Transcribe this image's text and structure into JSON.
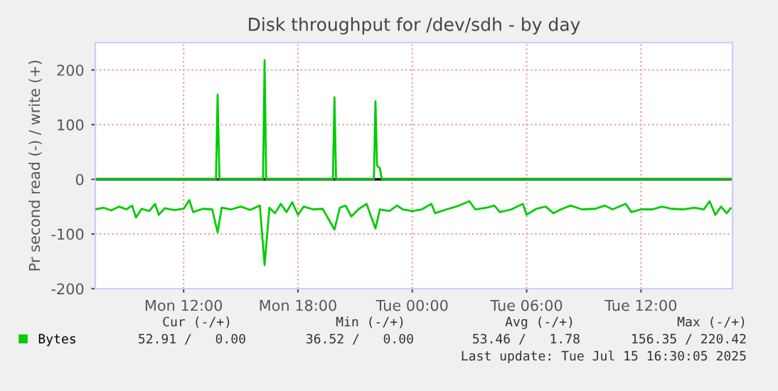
{
  "chart_data": {
    "type": "line",
    "title": "Disk throughput for /dev/sdh - by day",
    "ylabel": "Pr second read (-) / write (+)",
    "xlim": [
      "2025-07-14T07:22",
      "2025-07-15T16:48"
    ],
    "xticks": [
      {
        "value": "2025-07-14T12:00",
        "label": "Mon 12:00"
      },
      {
        "value": "2025-07-14T18:00",
        "label": "Mon 18:00"
      },
      {
        "value": "2025-07-15T00:00",
        "label": "Tue 00:00"
      },
      {
        "value": "2025-07-15T06:00",
        "label": "Tue 06:00"
      },
      {
        "value": "2025-07-15T12:00",
        "label": "Tue 12:00"
      }
    ],
    "ylim": [
      -200,
      250
    ],
    "yticks": [
      -200,
      -100,
      0,
      100,
      200
    ],
    "grid": true,
    "legend": "bottom",
    "ref_lines": [
      {
        "axis": "y",
        "value": 0,
        "color": "#000000"
      }
    ],
    "series": [
      {
        "name": "Bytes",
        "color": "#00cc00",
        "x": [
          "2025-07-14T07:22",
          "2025-07-14T07:48",
          "2025-07-14T08:12",
          "2025-07-14T08:36",
          "2025-07-14T09:00",
          "2025-07-14T09:18",
          "2025-07-14T09:30",
          "2025-07-14T09:48",
          "2025-07-14T10:12",
          "2025-07-14T10:30",
          "2025-07-14T10:42",
          "2025-07-14T11:00",
          "2025-07-14T11:30",
          "2025-07-14T12:00",
          "2025-07-14T12:18",
          "2025-07-14T12:30",
          "2025-07-14T13:00",
          "2025-07-14T13:30",
          "2025-07-14T13:47",
          "2025-07-14T14:00",
          "2025-07-14T14:30",
          "2025-07-14T15:00",
          "2025-07-14T15:30",
          "2025-07-14T16:00",
          "2025-07-14T16:15",
          "2025-07-14T16:30",
          "2025-07-14T16:48",
          "2025-07-14T17:06",
          "2025-07-14T17:24",
          "2025-07-14T17:42",
          "2025-07-14T18:00",
          "2025-07-14T18:18",
          "2025-07-14T18:48",
          "2025-07-14T19:18",
          "2025-07-14T19:55",
          "2025-07-14T20:12",
          "2025-07-14T20:30",
          "2025-07-14T20:48",
          "2025-07-14T21:12",
          "2025-07-14T21:36",
          "2025-07-14T22:04",
          "2025-07-14T22:18",
          "2025-07-14T22:48",
          "2025-07-14T23:12",
          "2025-07-14T23:30",
          "2025-07-15T00:00",
          "2025-07-15T00:30",
          "2025-07-15T01:00",
          "2025-07-15T01:12",
          "2025-07-15T01:48",
          "2025-07-15T02:18",
          "2025-07-15T03:00",
          "2025-07-15T03:18",
          "2025-07-15T03:54",
          "2025-07-15T04:18",
          "2025-07-15T04:36",
          "2025-07-15T05:12",
          "2025-07-15T05:48",
          "2025-07-15T06:00",
          "2025-07-15T06:30",
          "2025-07-15T07:00",
          "2025-07-15T07:24",
          "2025-07-15T07:48",
          "2025-07-15T08:18",
          "2025-07-15T08:54",
          "2025-07-15T09:36",
          "2025-07-15T10:06",
          "2025-07-15T10:30",
          "2025-07-15T11:12",
          "2025-07-15T11:30",
          "2025-07-15T12:00",
          "2025-07-15T12:36",
          "2025-07-15T13:06",
          "2025-07-15T13:36",
          "2025-07-15T14:12",
          "2025-07-15T14:48",
          "2025-07-15T15:18",
          "2025-07-15T15:36",
          "2025-07-15T15:54",
          "2025-07-15T16:12",
          "2025-07-15T16:30",
          "2025-07-15T16:42"
        ],
        "values": [
          -55,
          -52,
          -57,
          -50,
          -55,
          -48,
          -70,
          -54,
          -58,
          -45,
          -65,
          -53,
          -56,
          -54,
          -38,
          -60,
          -54,
          -55,
          -97,
          -52,
          -55,
          -50,
          -56,
          -48,
          -157,
          -52,
          -62,
          -45,
          -60,
          -42,
          -65,
          -50,
          -55,
          -54,
          -92,
          -52,
          -48,
          -68,
          -54,
          -45,
          -90,
          -55,
          -58,
          -48,
          -55,
          -58,
          -55,
          -45,
          -62,
          -55,
          -50,
          -40,
          -55,
          -52,
          -48,
          -60,
          -55,
          -45,
          -65,
          -54,
          -50,
          -62,
          -55,
          -48,
          -55,
          -54,
          -48,
          -55,
          -45,
          -60,
          -55,
          -55,
          -50,
          -54,
          -55,
          -52,
          -55,
          -40,
          -65,
          -50,
          -62,
          -53
        ]
      },
      {
        "color": "#00cc00",
        "x": [
          "2025-07-14T07:22",
          "2025-07-14T13:42",
          "2025-07-14T13:47",
          "2025-07-14T13:53",
          "2025-07-14T16:10",
          "2025-07-14T16:15",
          "2025-07-14T16:20",
          "2025-07-14T19:50",
          "2025-07-14T19:55",
          "2025-07-14T20:00",
          "2025-07-14T21:59",
          "2025-07-14T22:04",
          "2025-07-14T22:09",
          "2025-07-14T22:18",
          "2025-07-14T22:24",
          "2025-07-15T16:42"
        ],
        "values": [
          0,
          0,
          155,
          0,
          0,
          218,
          0,
          0,
          150,
          0,
          0,
          143,
          25,
          20,
          0,
          0
        ]
      }
    ],
    "annotations": [
      "Cur (-/+)",
      "Min (-/+)",
      "Avg (-/+)",
      "Max (-/+)",
      "52.91 /   0.00",
      "36.52 /   0.00",
      "53.46 /   1.78",
      "156.35 / 220.42",
      "Last update: Tue Jul 15 16:30:05 2025"
    ]
  }
}
